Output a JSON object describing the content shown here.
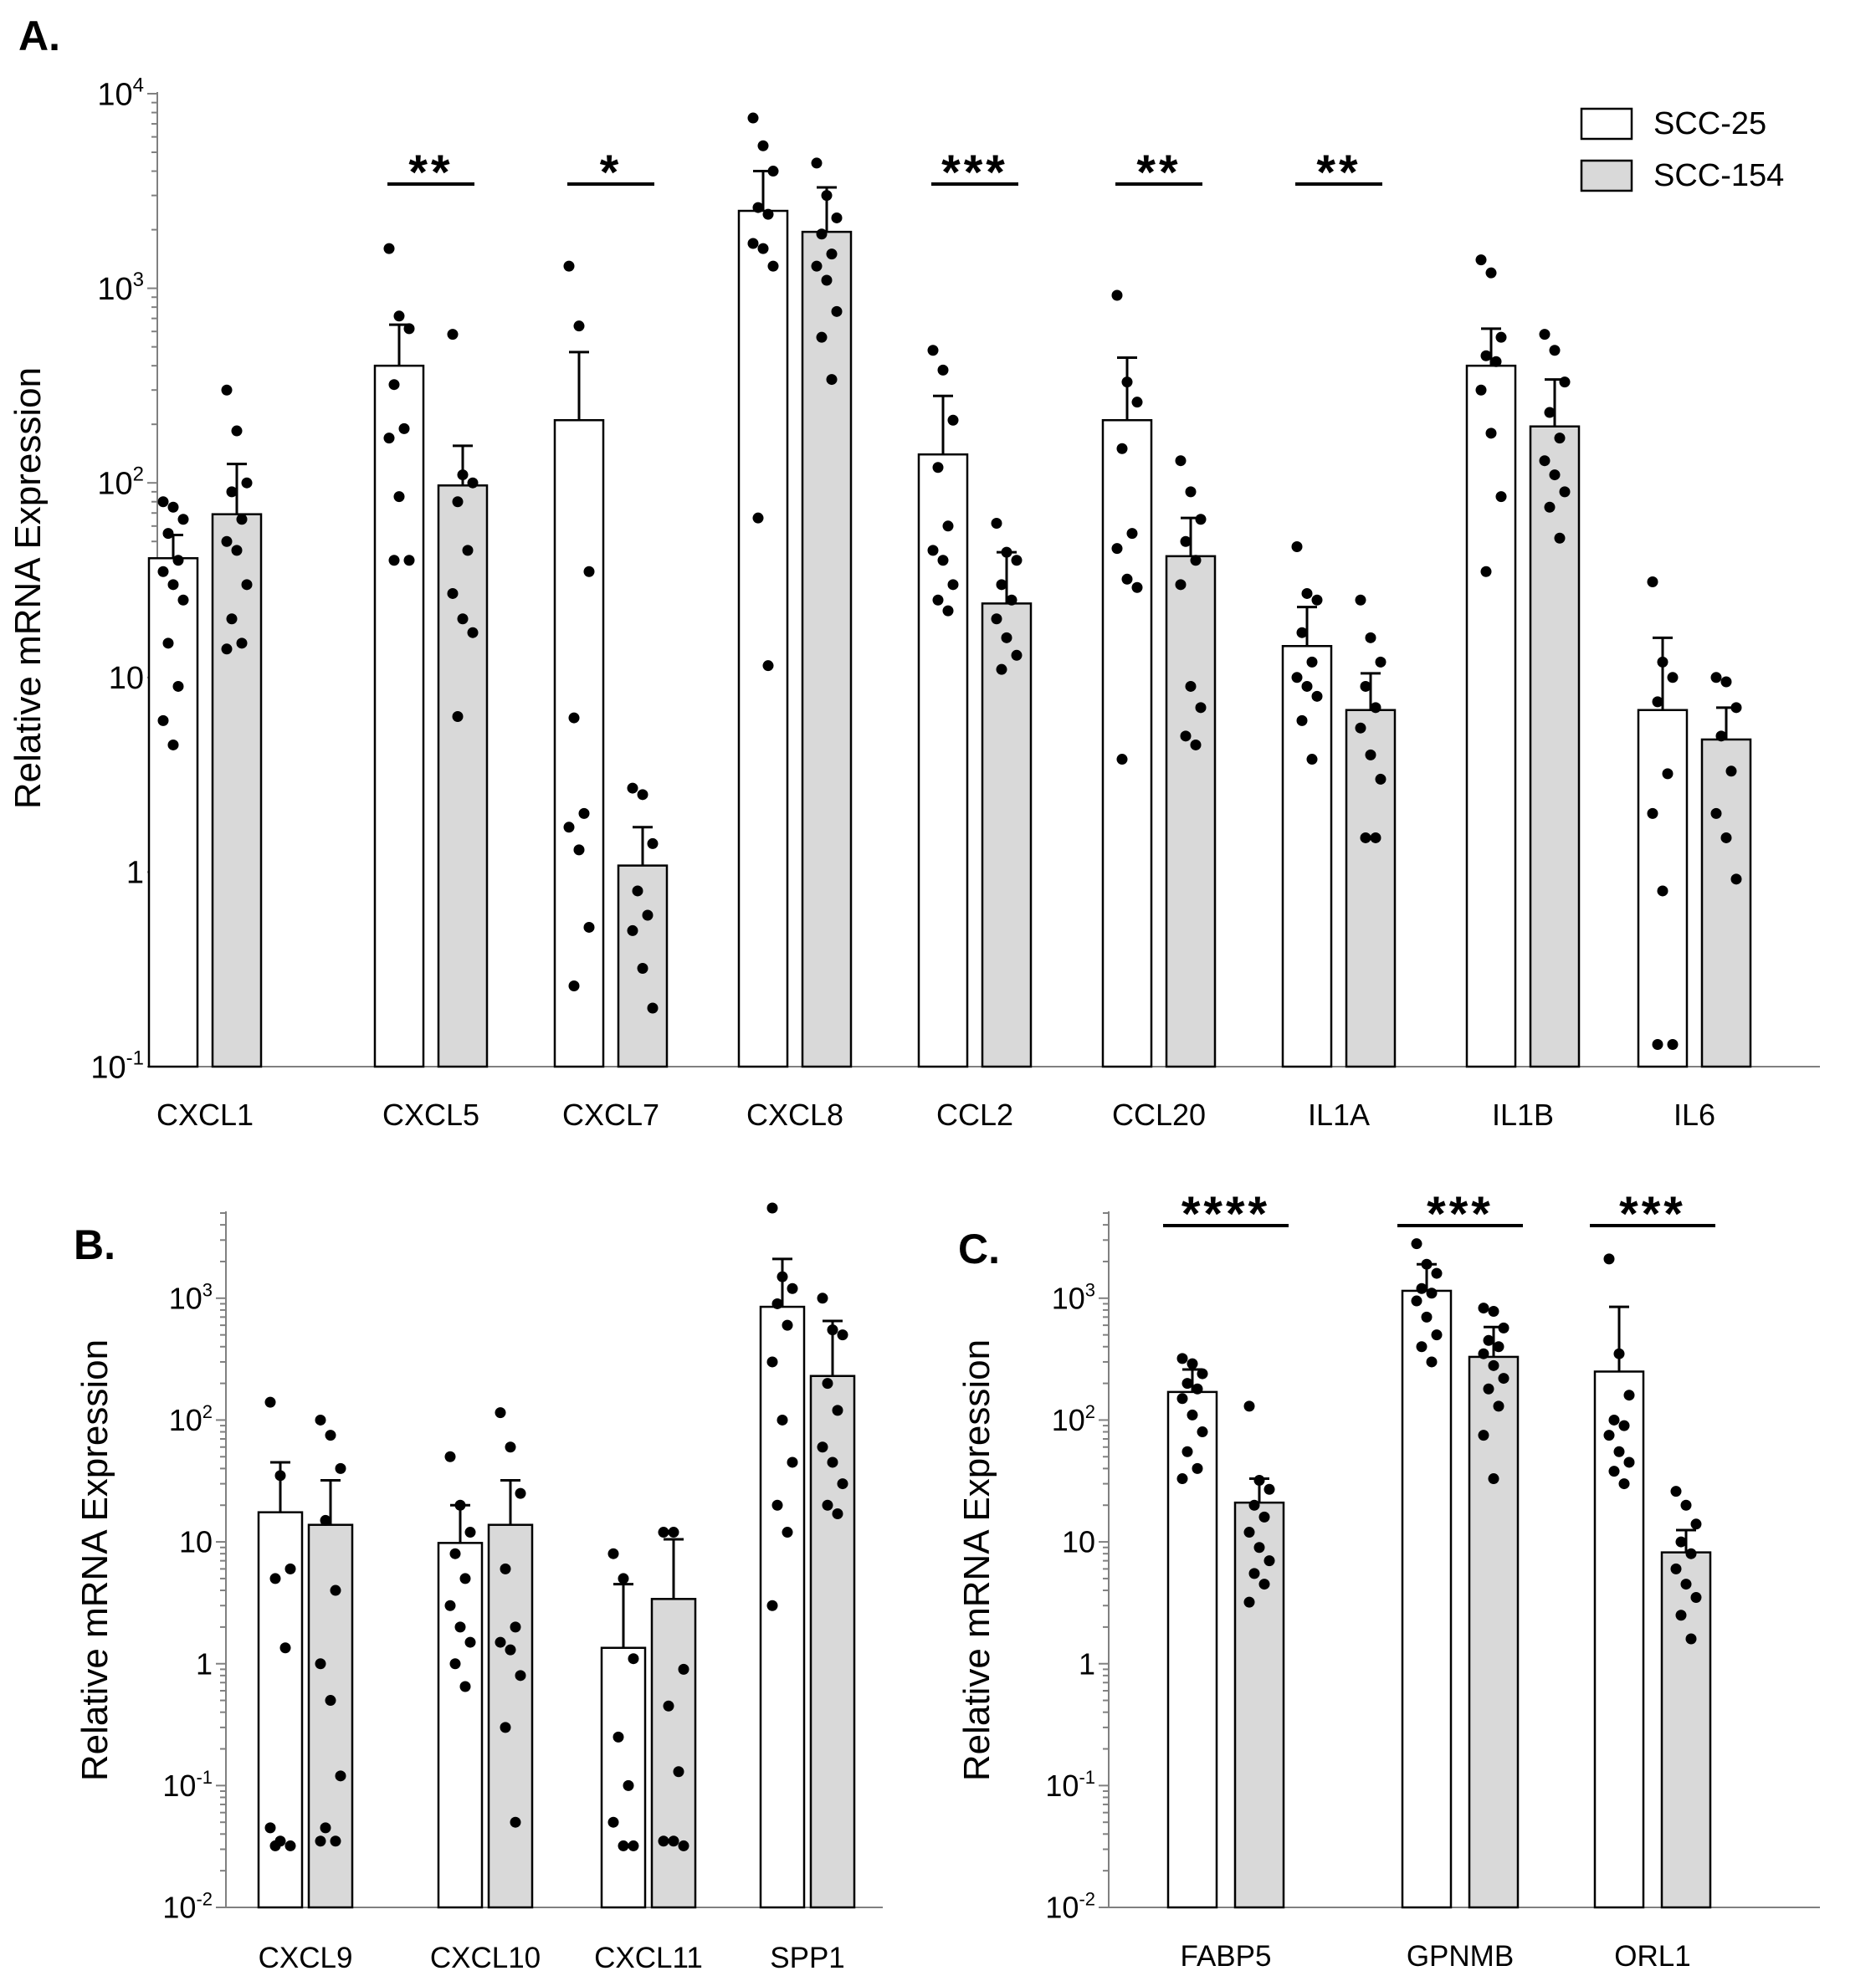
{
  "colors": {
    "scc25_fill": "#ffffff",
    "scc154_fill": "#d9d9d9",
    "stroke": "#000000",
    "axis": "#808080",
    "dot": "#000000"
  },
  "legend": {
    "series": [
      "SCC-25",
      "SCC-154"
    ]
  },
  "chart_data": [
    {
      "panel": "A.",
      "type": "bar",
      "scale": "log",
      "ylabel": "Relative mRNA Expression",
      "ylim": [
        0.1,
        10000
      ],
      "yticks": [
        {
          "value": 10000,
          "base": "10",
          "exp": "4"
        },
        {
          "value": 1000,
          "base": "10",
          "exp": "3"
        },
        {
          "value": 100,
          "base": "10",
          "exp": "2"
        },
        {
          "value": 10,
          "base": "10",
          "exp": ""
        },
        {
          "value": 1,
          "base": "1",
          "exp": ""
        },
        {
          "value": 0.1,
          "base": "10",
          "exp": "-1"
        }
      ],
      "categories": [
        "CXCL1",
        "CXCL5",
        "CXCL7",
        "CXCL8",
        "CCL2",
        "CCL20",
        "IL1A",
        "IL1B",
        "IL6"
      ],
      "series": [
        {
          "name": "SCC-25",
          "values": [
            41,
            400,
            210,
            2500,
            140,
            210,
            14.5,
            400,
            6.8
          ],
          "errors": [
            54,
            650,
            470,
            4000,
            280,
            440,
            23,
            620,
            16
          ],
          "points": [
            [
              80,
              75,
              65,
              55,
              40,
              35,
              30,
              25,
              15,
              9,
              6,
              4.5
            ],
            [
              1600,
              720,
              620,
              320,
              190,
              170,
              85,
              40,
              40
            ],
            [
              1300,
              640,
              35,
              6.2,
              2,
              1.7,
              1.3,
              0.52,
              0.26
            ],
            [
              7500,
              5400,
              4000,
              2600,
              2400,
              1700,
              1600,
              1300,
              66,
              11.5
            ],
            [
              480,
              380,
              210,
              120,
              60,
              45,
              40,
              30,
              25,
              22
            ],
            [
              920,
              330,
              260,
              150,
              55,
              46,
              32,
              29,
              3.8
            ],
            [
              47,
              27,
              25,
              17,
              12,
              10,
              9,
              8,
              6,
              3.8
            ],
            [
              1400,
              1200,
              560,
              450,
              420,
              300,
              180,
              85,
              35
            ],
            [
              31,
              12,
              10,
              7.5,
              3.2,
              2,
              0.8,
              0.13,
              0.13
            ]
          ]
        },
        {
          "name": "SCC-154",
          "values": [
            69,
            97,
            1.08,
            1950,
            24,
            42,
            6.8,
            195,
            4.8
          ],
          "errors": [
            125,
            155,
            1.7,
            3300,
            44,
            66,
            10.5,
            340,
            7
          ],
          "points": [
            [
              300,
              185,
              100,
              90,
              65,
              50,
              45,
              30,
              20,
              15,
              14
            ],
            [
              580,
              110,
              100,
              80,
              45,
              27,
              20,
              17,
              6.3
            ],
            [
              2.7,
              2.5,
              1.4,
              0.8,
              0.6,
              0.5,
              0.32,
              0.2
            ],
            [
              4400,
              3000,
              2300,
              1900,
              1500,
              1300,
              1100,
              760,
              560,
              340
            ],
            [
              62,
              44,
              40,
              30,
              25,
              20,
              16,
              13,
              11
            ],
            [
              130,
              90,
              65,
              50,
              40,
              30,
              9,
              7,
              5,
              4.5
            ],
            [
              25,
              16,
              12,
              9,
              7,
              5.5,
              4,
              3,
              1.5,
              1.5
            ],
            [
              580,
              480,
              330,
              230,
              170,
              130,
              110,
              90,
              75,
              52
            ],
            [
              10,
              9.5,
              7,
              5,
              3.3,
              2,
              1.5,
              0.92
            ]
          ]
        }
      ],
      "significance": [
        {
          "category": "CXCL5",
          "label": "**"
        },
        {
          "category": "CXCL7",
          "label": "*"
        },
        {
          "category": "CCL2",
          "label": "***"
        },
        {
          "category": "CCL20",
          "label": "**"
        },
        {
          "category": "IL1A",
          "label": "**"
        }
      ]
    },
    {
      "panel": "B.",
      "type": "bar",
      "scale": "log",
      "ylabel": "Relative mRNA Expression",
      "ylim": [
        0.01,
        5000
      ],
      "yticks": [
        {
          "value": 1000,
          "base": "10",
          "exp": "3"
        },
        {
          "value": 100,
          "base": "10",
          "exp": "2"
        },
        {
          "value": 10,
          "base": "10",
          "exp": ""
        },
        {
          "value": 1,
          "base": "1",
          "exp": ""
        },
        {
          "value": 0.1,
          "base": "10",
          "exp": "-1"
        },
        {
          "value": 0.01,
          "base": "10",
          "exp": "-2"
        }
      ],
      "categories": [
        "CXCL9",
        "CXCL10",
        "CXCL11",
        "SPP1"
      ],
      "series": [
        {
          "name": "SCC-25",
          "values": [
            17.5,
            9.8,
            1.35,
            850
          ],
          "errors": [
            45,
            20,
            4.5,
            2100
          ],
          "points": [
            [
              140,
              35,
              6,
              5,
              1.35,
              0.045,
              0.035,
              0.032,
              0.032
            ],
            [
              50,
              20,
              12,
              8,
              5,
              3,
              2,
              1.5,
              1,
              0.65
            ],
            [
              8,
              5,
              1.1,
              0.25,
              0.1,
              0.05,
              0.032,
              0.032
            ],
            [
              5500,
              1500,
              1200,
              900,
              600,
              300,
              100,
              45,
              20,
              12,
              3
            ]
          ]
        },
        {
          "name": "SCC-154",
          "values": [
            13.8,
            13.8,
            3.4,
            230
          ],
          "errors": [
            32,
            32,
            10.5,
            650
          ],
          "points": [
            [
              100,
              75,
              40,
              15,
              4,
              1,
              0.5,
              0.12,
              0.045,
              0.035,
              0.035
            ],
            [
              115,
              60,
              25,
              6,
              2,
              1.5,
              1.3,
              0.8,
              0.3,
              0.05
            ],
            [
              12,
              12,
              0.9,
              0.45,
              0.13,
              0.035,
              0.035,
              0.032
            ],
            [
              1000,
              550,
              500,
              200,
              120,
              60,
              45,
              30,
              20,
              17
            ]
          ]
        }
      ]
    },
    {
      "panel": "C.",
      "type": "bar",
      "scale": "log",
      "ylabel": "Relative mRNA Expression",
      "ylim": [
        0.01,
        5000
      ],
      "yticks": [
        {
          "value": 1000,
          "base": "10",
          "exp": "3"
        },
        {
          "value": 100,
          "base": "10",
          "exp": "2"
        },
        {
          "value": 10,
          "base": "10",
          "exp": ""
        },
        {
          "value": 1,
          "base": "1",
          "exp": ""
        },
        {
          "value": 0.1,
          "base": "10",
          "exp": "-1"
        },
        {
          "value": 0.01,
          "base": "10",
          "exp": "-2"
        }
      ],
      "categories": [
        "FABP5",
        "GPNMB",
        "ORL1"
      ],
      "series": [
        {
          "name": "SCC-25",
          "values": [
            170,
            1150,
            250
          ],
          "errors": [
            260,
            1900,
            850
          ],
          "points": [
            [
              320,
              290,
              240,
              200,
              180,
              150,
              110,
              80,
              55,
              40,
              33
            ],
            [
              2800,
              1900,
              1600,
              1200,
              1100,
              950,
              700,
              500,
              400,
              300
            ],
            [
              2100,
              350,
              160,
              100,
              90,
              75,
              55,
              45,
              38,
              30
            ]
          ]
        },
        {
          "name": "SCC-154",
          "values": [
            21,
            330,
            8.2
          ],
          "errors": [
            33,
            580,
            12.5
          ],
          "points": [
            [
              130,
              32,
              27,
              20,
              16,
              12,
              9,
              7,
              5.5,
              4.5,
              3.2
            ],
            [
              830,
              780,
              570,
              450,
              400,
              350,
              280,
              220,
              180,
              130,
              75,
              33
            ],
            [
              26,
              20,
              14,
              10,
              8,
              6,
              4.5,
              3.5,
              2.5,
              1.6
            ]
          ]
        }
      ],
      "significance": [
        {
          "category": "FABP5",
          "label": "****"
        },
        {
          "category": "GPNMB",
          "label": "***"
        },
        {
          "category": "ORL1",
          "label": "***"
        }
      ]
    }
  ]
}
